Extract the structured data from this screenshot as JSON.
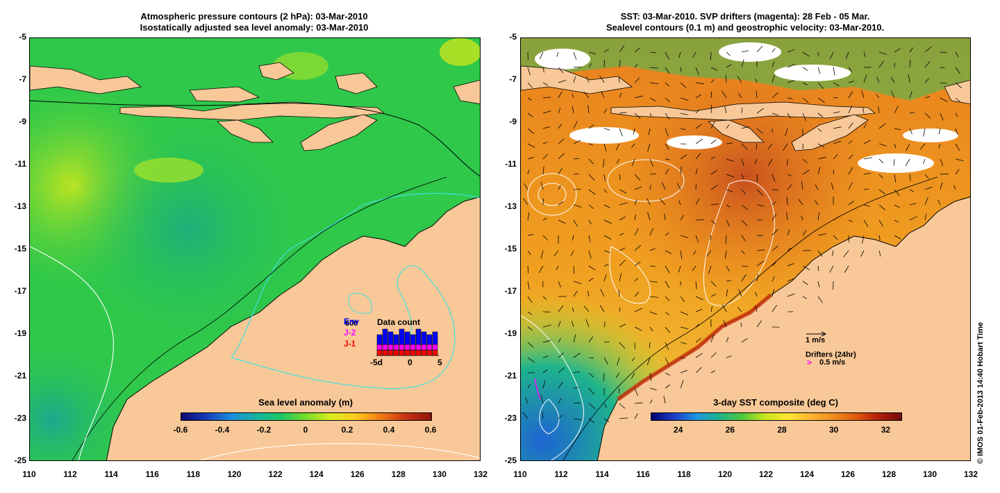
{
  "left_panel": {
    "title_line1": "Atmospheric pressure contours (2 hPa): 03-Mar-2010",
    "title_line2": "Isostatically adjusted sea level anomaly: 03-Mar-2010",
    "colorbar": {
      "title": "Sea level anomaly (m)",
      "ticks": [
        "-0.6",
        "-0.4",
        "-0.2",
        "0",
        "0.2",
        "0.4",
        "0.6"
      ],
      "colors": [
        "#0a0a6e",
        "#1a3cb4",
        "#1e8cdc",
        "#19b4a0",
        "#1ec864",
        "#78dc28",
        "#dcf01e",
        "#ffc81e",
        "#f07814",
        "#c83214",
        "#8c140a"
      ]
    },
    "data_count": {
      "title": "Data count",
      "count_label": "500",
      "series_labels": [
        "Env",
        "J-2",
        "J-1"
      ],
      "series_colors": [
        "#0000ff",
        "#ff00ff",
        "#ff0000"
      ],
      "x_ticks": [
        "-5d",
        "0",
        "5"
      ]
    }
  },
  "right_panel": {
    "title_line1": "SST: 03-Mar-2010. SVP drifters (magenta): 28 Feb - 05 Mar.",
    "title_line2": "Sealevel contours (0.1 m) and geostrophic velocity: 03-Mar-2010.",
    "colorbar": {
      "title": "3-day SST composite (deg C)",
      "ticks": [
        "24",
        "26",
        "28",
        "30",
        "32"
      ],
      "colors": [
        "#00006e",
        "#1e3cc8",
        "#1e96dc",
        "#1eb48c",
        "#50c83c",
        "#c8e61e",
        "#ffe632",
        "#ffb432",
        "#f08c1e",
        "#e05a0a",
        "#b41e0a",
        "#6e0a0a"
      ]
    },
    "velocity_legend": "1 m/s",
    "drifter_legend_title": "Drifters (24hr)",
    "drifter_legend_value": "0.5 m/s",
    "credit": "© IMOS 01-Feb-2013 14:40 Hobart Time"
  },
  "axes": {
    "y_ticks": [
      "-5",
      "-7",
      "-9",
      "-11",
      "-13",
      "-15",
      "-17",
      "-19",
      "-21",
      "-23",
      "-25"
    ],
    "x_ticks": [
      "110",
      "112",
      "114",
      "116",
      "118",
      "120",
      "122",
      "124",
      "126",
      "128",
      "130",
      "132"
    ]
  },
  "colors": {
    "land": "#f8c898",
    "left_ocean": "#2fc84a",
    "right_ocean": "#e8901e",
    "velocity_contour": "#ffffff",
    "pressure_contour": "#40e0e0"
  }
}
